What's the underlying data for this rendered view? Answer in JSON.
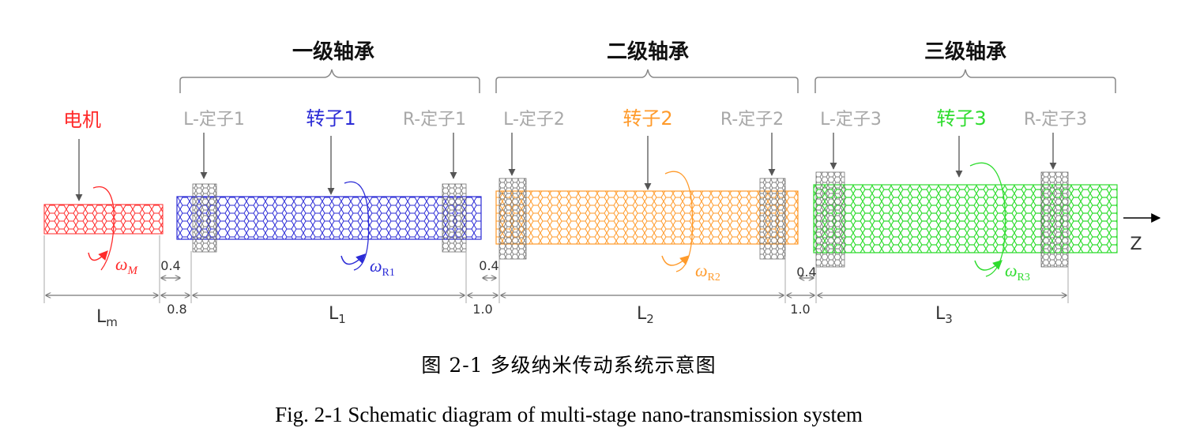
{
  "bearings": [
    {
      "label": "一级轴承"
    },
    {
      "label": "二级轴承"
    },
    {
      "label": "三级轴承"
    }
  ],
  "motor": {
    "label": "电机",
    "omega_symbol": "ω",
    "omega_sub": "M",
    "color": "#ff2a2a"
  },
  "stages": [
    {
      "left_stator": "L-定子1",
      "rotor": "转子1",
      "right_stator": "R-定子1",
      "omega_symbol": "ω",
      "omega_sub": "R1",
      "color": "#2b2bd6",
      "length_label": "L",
      "length_sub": "1"
    },
    {
      "left_stator": "L-定子2",
      "rotor": "转子2",
      "right_stator": "R-定子2",
      "omega_symbol": "ω",
      "omega_sub": "R2",
      "color": "#ff9a2a",
      "length_label": "L",
      "length_sub": "2"
    },
    {
      "left_stator": "L-定子3",
      "rotor": "转子3",
      "right_stator": "R-定子3",
      "omega_symbol": "ω",
      "omega_sub": "R3",
      "color": "#2edc2e",
      "length_label": "L",
      "length_sub": "3"
    }
  ],
  "motor_length": {
    "label": "L",
    "sub": "m"
  },
  "gap_values": {
    "g1_top": "0.4",
    "g1_bottom": "0.8",
    "g2_top": "0.4",
    "g2_bottom": "1.0",
    "g3_top": "0.4",
    "g3_bottom": "1.0"
  },
  "axis_label": "Z",
  "stator_color": "#a0a0a0",
  "caption_zh": "图 2-1  多级纳米传动系统示意图",
  "caption_en": "Fig. 2-1 Schematic diagram of multi-stage nano-transmission system"
}
